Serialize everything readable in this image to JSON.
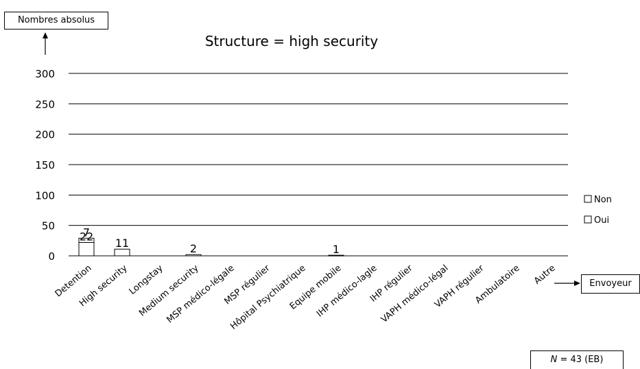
{
  "chart_data": {
    "type": "bar",
    "stacked": true,
    "title": "Structure = high security",
    "ylabel": "Nombres absolus",
    "xlabel": "Envoyeur",
    "ylim": [
      0,
      300
    ],
    "yticks": [
      0,
      50,
      100,
      150,
      200,
      250,
      300
    ],
    "grid": true,
    "legend_position": "right",
    "categories": [
      "Detention",
      "High security",
      "Longstay",
      "Medium security",
      "MSP médico-légale",
      "MSP régulier",
      "Hôpital Psychiatrique",
      "Equipe mobile",
      "IHP médico-lagle",
      "IHP régulier",
      "VAPH médico-légal",
      "VAPH régulier",
      "Ambulatoire",
      "Autre"
    ],
    "series": [
      {
        "name": "Oui",
        "values": [
          22,
          11,
          0,
          2,
          0,
          0,
          0,
          1,
          0,
          0,
          0,
          0,
          0,
          0
        ]
      },
      {
        "name": "Non",
        "values": [
          7,
          0,
          0,
          0,
          0,
          0,
          0,
          0,
          0,
          0,
          0,
          0,
          0,
          0
        ]
      }
    ],
    "data_labels": [
      {
        "category": "Detention",
        "series": "Non",
        "text": "7"
      },
      {
        "category": "Detention",
        "series": "Oui",
        "text": "22"
      },
      {
        "category": "High security",
        "series": "Oui",
        "text": "11"
      },
      {
        "category": "Medium security",
        "series": "Oui",
        "text": "2"
      },
      {
        "category": "Equipe mobile",
        "series": "Oui",
        "text": "1"
      }
    ]
  },
  "sample_note": {
    "n_symbol": "N",
    "n_value": "= 43 (EB)"
  }
}
